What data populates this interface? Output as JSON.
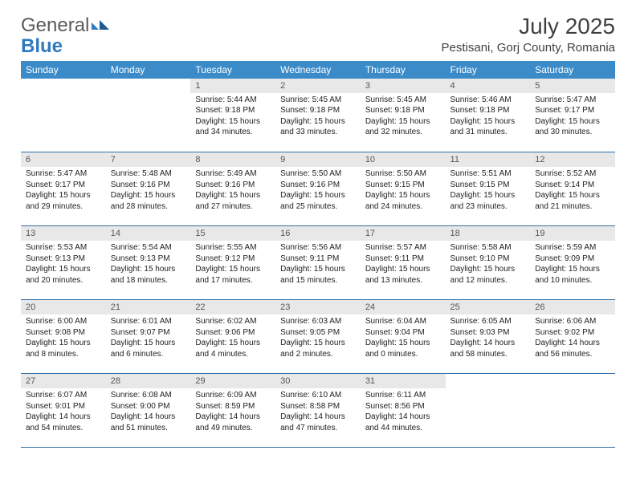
{
  "brand": {
    "part1": "General",
    "part2": "Blue",
    "color_general": "#5a5a5a",
    "color_blue": "#2f7abf"
  },
  "title": "July 2025",
  "location": "Pestisani, Gorj County, Romania",
  "header_bg": "#3b8bc9",
  "header_fg": "#ffffff",
  "daynum_bg": "#e8e8e8",
  "border_color": "#2f6fa8",
  "weekdays": [
    "Sunday",
    "Monday",
    "Tuesday",
    "Wednesday",
    "Thursday",
    "Friday",
    "Saturday"
  ],
  "weeks": [
    [
      null,
      null,
      {
        "n": "1",
        "sunrise": "5:44 AM",
        "sunset": "9:18 PM",
        "daylight": "15 hours and 34 minutes."
      },
      {
        "n": "2",
        "sunrise": "5:45 AM",
        "sunset": "9:18 PM",
        "daylight": "15 hours and 33 minutes."
      },
      {
        "n": "3",
        "sunrise": "5:45 AM",
        "sunset": "9:18 PM",
        "daylight": "15 hours and 32 minutes."
      },
      {
        "n": "4",
        "sunrise": "5:46 AM",
        "sunset": "9:18 PM",
        "daylight": "15 hours and 31 minutes."
      },
      {
        "n": "5",
        "sunrise": "5:47 AM",
        "sunset": "9:17 PM",
        "daylight": "15 hours and 30 minutes."
      }
    ],
    [
      {
        "n": "6",
        "sunrise": "5:47 AM",
        "sunset": "9:17 PM",
        "daylight": "15 hours and 29 minutes."
      },
      {
        "n": "7",
        "sunrise": "5:48 AM",
        "sunset": "9:16 PM",
        "daylight": "15 hours and 28 minutes."
      },
      {
        "n": "8",
        "sunrise": "5:49 AM",
        "sunset": "9:16 PM",
        "daylight": "15 hours and 27 minutes."
      },
      {
        "n": "9",
        "sunrise": "5:50 AM",
        "sunset": "9:16 PM",
        "daylight": "15 hours and 25 minutes."
      },
      {
        "n": "10",
        "sunrise": "5:50 AM",
        "sunset": "9:15 PM",
        "daylight": "15 hours and 24 minutes."
      },
      {
        "n": "11",
        "sunrise": "5:51 AM",
        "sunset": "9:15 PM",
        "daylight": "15 hours and 23 minutes."
      },
      {
        "n": "12",
        "sunrise": "5:52 AM",
        "sunset": "9:14 PM",
        "daylight": "15 hours and 21 minutes."
      }
    ],
    [
      {
        "n": "13",
        "sunrise": "5:53 AM",
        "sunset": "9:13 PM",
        "daylight": "15 hours and 20 minutes."
      },
      {
        "n": "14",
        "sunrise": "5:54 AM",
        "sunset": "9:13 PM",
        "daylight": "15 hours and 18 minutes."
      },
      {
        "n": "15",
        "sunrise": "5:55 AM",
        "sunset": "9:12 PM",
        "daylight": "15 hours and 17 minutes."
      },
      {
        "n": "16",
        "sunrise": "5:56 AM",
        "sunset": "9:11 PM",
        "daylight": "15 hours and 15 minutes."
      },
      {
        "n": "17",
        "sunrise": "5:57 AM",
        "sunset": "9:11 PM",
        "daylight": "15 hours and 13 minutes."
      },
      {
        "n": "18",
        "sunrise": "5:58 AM",
        "sunset": "9:10 PM",
        "daylight": "15 hours and 12 minutes."
      },
      {
        "n": "19",
        "sunrise": "5:59 AM",
        "sunset": "9:09 PM",
        "daylight": "15 hours and 10 minutes."
      }
    ],
    [
      {
        "n": "20",
        "sunrise": "6:00 AM",
        "sunset": "9:08 PM",
        "daylight": "15 hours and 8 minutes."
      },
      {
        "n": "21",
        "sunrise": "6:01 AM",
        "sunset": "9:07 PM",
        "daylight": "15 hours and 6 minutes."
      },
      {
        "n": "22",
        "sunrise": "6:02 AM",
        "sunset": "9:06 PM",
        "daylight": "15 hours and 4 minutes."
      },
      {
        "n": "23",
        "sunrise": "6:03 AM",
        "sunset": "9:05 PM",
        "daylight": "15 hours and 2 minutes."
      },
      {
        "n": "24",
        "sunrise": "6:04 AM",
        "sunset": "9:04 PM",
        "daylight": "15 hours and 0 minutes."
      },
      {
        "n": "25",
        "sunrise": "6:05 AM",
        "sunset": "9:03 PM",
        "daylight": "14 hours and 58 minutes."
      },
      {
        "n": "26",
        "sunrise": "6:06 AM",
        "sunset": "9:02 PM",
        "daylight": "14 hours and 56 minutes."
      }
    ],
    [
      {
        "n": "27",
        "sunrise": "6:07 AM",
        "sunset": "9:01 PM",
        "daylight": "14 hours and 54 minutes."
      },
      {
        "n": "28",
        "sunrise": "6:08 AM",
        "sunset": "9:00 PM",
        "daylight": "14 hours and 51 minutes."
      },
      {
        "n": "29",
        "sunrise": "6:09 AM",
        "sunset": "8:59 PM",
        "daylight": "14 hours and 49 minutes."
      },
      {
        "n": "30",
        "sunrise": "6:10 AM",
        "sunset": "8:58 PM",
        "daylight": "14 hours and 47 minutes."
      },
      {
        "n": "31",
        "sunrise": "6:11 AM",
        "sunset": "8:56 PM",
        "daylight": "14 hours and 44 minutes."
      },
      null,
      null
    ]
  ],
  "labels": {
    "sunrise": "Sunrise:",
    "sunset": "Sunset:",
    "daylight": "Daylight:"
  }
}
